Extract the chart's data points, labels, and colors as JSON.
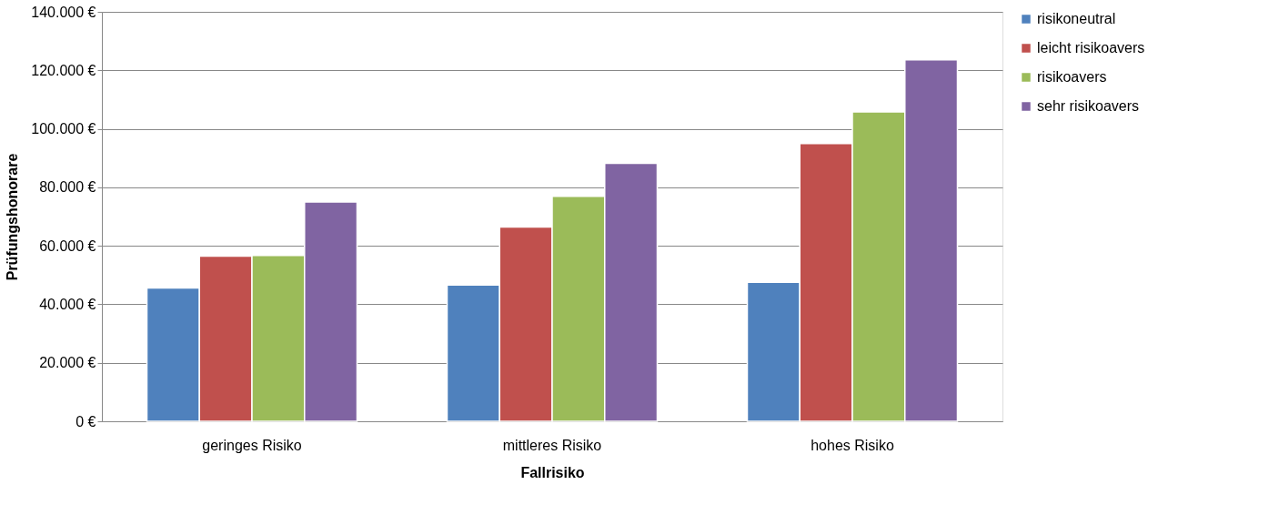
{
  "chart_data": {
    "type": "bar",
    "xlabel": "Fallrisiko",
    "ylabel": "Prüfungshonorare",
    "categories": [
      "geringes Risiko",
      "mittleres Risiko",
      "hohes Risiko"
    ],
    "series": [
      {
        "name": "risikoneutral",
        "color": "#4f81bd",
        "values": [
          45600,
          46600,
          47500
        ]
      },
      {
        "name": "leicht risikoavers",
        "color": "#c0504d",
        "values": [
          56500,
          66400,
          95000
        ]
      },
      {
        "name": "risikoavers",
        "color": "#9bbb59",
        "values": [
          56700,
          76900,
          105800
        ]
      },
      {
        "name": "sehr risikoavers",
        "color": "#8064a2",
        "values": [
          75000,
          88200,
          123600
        ]
      }
    ],
    "ylim": [
      0,
      140000
    ],
    "yticks": [
      {
        "value": 0,
        "label": "0 €"
      },
      {
        "value": 20000,
        "label": "20.000 €"
      },
      {
        "value": 40000,
        "label": "40.000 €"
      },
      {
        "value": 60000,
        "label": "60.000 €"
      },
      {
        "value": 80000,
        "label": "80.000 €"
      },
      {
        "value": 100000,
        "label": "100.000 €"
      },
      {
        "value": 120000,
        "label": "120.000 €"
      },
      {
        "value": 140000,
        "label": "140.000 €"
      }
    ],
    "grid": "y",
    "legend": "right"
  }
}
